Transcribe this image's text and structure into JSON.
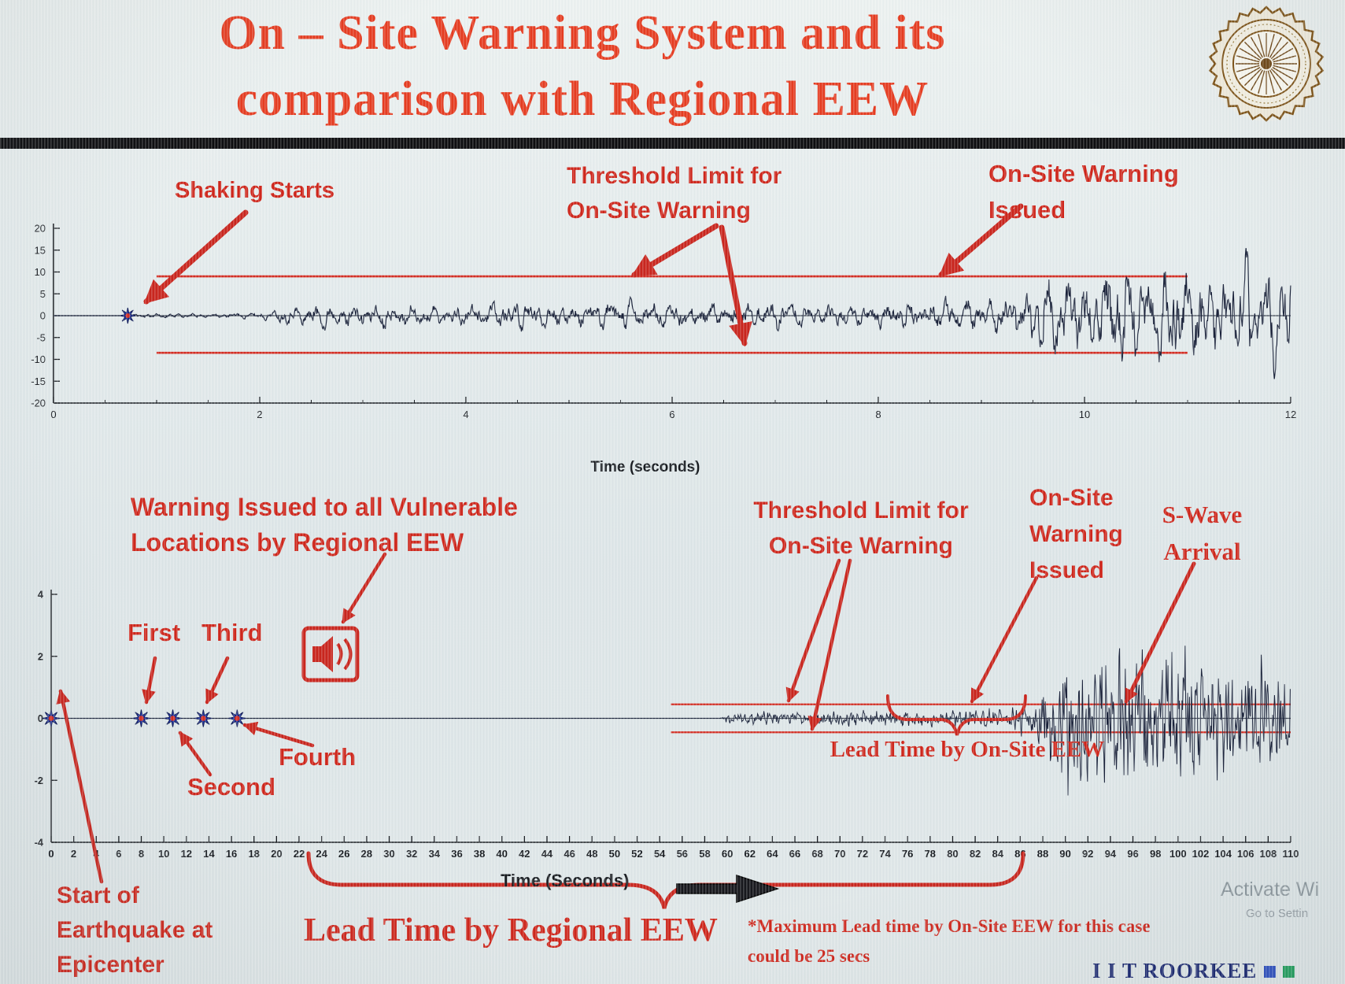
{
  "labels": {
    "title": {
      "line1": "On – Site Warning System and its",
      "line2": "comparison with Regional EEW"
    },
    "top_chart": {
      "shaking_starts": "Shaking Starts",
      "threshold_line1": "Threshold Limit for",
      "threshold_line2": "On-Site Warning",
      "warning_line1": "On-Site Warning",
      "warning_line2": "Issued"
    },
    "bottom_chart": {
      "regional_line1": "Warning Issued to all Vulnerable",
      "regional_line2": "Locations by Regional EEW",
      "threshold_line1": "Threshold Limit for",
      "threshold_line2": "On-Site Warning",
      "onsite_line1": "On-Site",
      "onsite_line2": "Warning",
      "onsite_line3": "Issued",
      "swave_line1": "S-Wave",
      "swave_line2": "Arrival",
      "start_line1": "Start of",
      "start_line2": "Earthquake at",
      "start_line3": "Epicenter",
      "lead_onsite": "Lead Time by On-Site EEW",
      "lead_regional": "Lead Time by Regional EEW",
      "max_note_line1": "*Maximum Lead time by On-Site EEW for this case",
      "max_note_line2": "could be 25 secs"
    },
    "footer": {
      "brand": "I I T ROORKEE",
      "watermark_line1": "Activate Wi",
      "watermark_line2": "Go to Settin"
    }
  },
  "icons": {
    "regional_warning": "speaker-icon",
    "time_direction": "right-arrow-icon",
    "institute_logo": "iit-roorkee-emblem"
  },
  "colors": {
    "title_red": "#e63a1e",
    "annotation_red": "#cf2318",
    "arrow_red": "#c9231b",
    "threshold": "#d42b20",
    "waveform": "#182038",
    "marker_blue": "#2336ad",
    "brand_navy": "#17246e",
    "square_blue": "#2b4dc0",
    "square_green": "#1e9e5a"
  },
  "chart_data": [
    {
      "id": "onsite_record",
      "type": "line",
      "description": "Single-station accelerogram with on-site warning threshold lines",
      "xlabel": "Time (seconds)",
      "xlim": [
        0,
        12
      ],
      "xticks": [
        0,
        2,
        4,
        6,
        8,
        10,
        12
      ],
      "xminor_step": 0.5,
      "ylim": [
        -20,
        20
      ],
      "yticks": [
        20,
        15,
        10,
        5,
        0,
        -5,
        -10,
        -15,
        -20
      ],
      "grid": false,
      "threshold_upper": 9,
      "threshold_lower": -8.5,
      "threshold_span": [
        1,
        11
      ],
      "shaking_start_t": 0.72,
      "onsite_warning_issued_t": 9.4,
      "envelope": [
        [
          0,
          0
        ],
        [
          0.68,
          0
        ],
        [
          0.72,
          0.5
        ],
        [
          1.0,
          0.7
        ],
        [
          1.4,
          0.55
        ],
        [
          1.8,
          0.8
        ],
        [
          2.1,
          1.2
        ],
        [
          2.35,
          3.2
        ],
        [
          2.6,
          4.4
        ],
        [
          2.9,
          3.2
        ],
        [
          3.3,
          3.8
        ],
        [
          3.7,
          2.8
        ],
        [
          4.1,
          3.4
        ],
        [
          4.5,
          4.1
        ],
        [
          5.0,
          3.1
        ],
        [
          5.4,
          4.3
        ],
        [
          5.9,
          4.6
        ],
        [
          6.4,
          3.4
        ],
        [
          6.9,
          4.6
        ],
        [
          7.4,
          3.1
        ],
        [
          7.9,
          3.6
        ],
        [
          8.4,
          4.2
        ],
        [
          8.9,
          4.8
        ],
        [
          9.2,
          5.5
        ],
        [
          9.45,
          8.5
        ],
        [
          9.7,
          12.5
        ],
        [
          10.0,
          10.5
        ],
        [
          10.3,
          16.5
        ],
        [
          10.6,
          12.5
        ],
        [
          10.9,
          16.0
        ],
        [
          11.2,
          12.0
        ],
        [
          11.5,
          17.0
        ],
        [
          11.8,
          13.5
        ],
        [
          12,
          14.5
        ]
      ],
      "components": [
        {
          "freq": 5.2,
          "amp": 0.55,
          "phase": 0.7
        },
        {
          "freq": 8.9,
          "amp": 0.45,
          "phase": 2.1
        },
        {
          "freq": 13.7,
          "amp": 0.3,
          "phase": 4.0
        }
      ],
      "noise": 0.55,
      "seed": 11
    },
    {
      "id": "regional_vs_onsite",
      "type": "line",
      "description": "Epicentral timeline comparing Regional EEW and On-Site EEW lead times",
      "xlabel": "Time (Seconds)",
      "xlim": [
        0,
        110
      ],
      "xticks": [
        0,
        2,
        4,
        6,
        8,
        10,
        12,
        14,
        16,
        18,
        20,
        22,
        24,
        26,
        28,
        30,
        32,
        34,
        36,
        38,
        40,
        42,
        44,
        46,
        48,
        50,
        52,
        54,
        56,
        58,
        60,
        62,
        64,
        66,
        68,
        70,
        72,
        74,
        76,
        78,
        80,
        82,
        84,
        86,
        88,
        90,
        92,
        94,
        96,
        98,
        100,
        102,
        104,
        106,
        108,
        110
      ],
      "ylim": [
        -4,
        4
      ],
      "yticks": [
        4,
        2,
        0,
        -2,
        -4
      ],
      "grid": false,
      "threshold_upper": 0.45,
      "threshold_lower": -0.45,
      "threshold_span": [
        55,
        110
      ],
      "detections": [
        {
          "label": "Start of Earthquake at Epicenter",
          "t": 0
        },
        {
          "label": "First",
          "t": 8
        },
        {
          "label": "Second",
          "t": 10.8
        },
        {
          "label": "Third",
          "t": 13.5
        },
        {
          "label": "Fourth",
          "t": 16.5
        }
      ],
      "regional_warning_issued_t": 24,
      "onsite_warning_issued_t": 74,
      "s_wave_arrival_t": 87,
      "lead_time_regional_span": [
        24,
        86
      ],
      "lead_time_onsite_span": [
        74,
        87
      ],
      "max_lead_time_onsite_secs": 25,
      "envelope": [
        [
          0,
          0
        ],
        [
          59.4,
          0
        ],
        [
          59.8,
          0.18
        ],
        [
          61,
          0.24
        ],
        [
          63,
          0.3
        ],
        [
          65,
          0.26
        ],
        [
          67,
          0.3
        ],
        [
          69,
          0.33
        ],
        [
          71,
          0.28
        ],
        [
          73,
          0.33
        ],
        [
          75,
          0.3
        ],
        [
          77,
          0.34
        ],
        [
          79,
          0.3
        ],
        [
          80,
          0.36
        ],
        [
          81.5,
          0.32
        ],
        [
          83,
          0.42
        ],
        [
          84.5,
          0.38
        ],
        [
          86,
          0.55
        ],
        [
          87,
          0.8
        ],
        [
          88,
          1.5
        ],
        [
          89,
          2.3
        ],
        [
          90,
          3.0
        ],
        [
          90.8,
          2.4
        ],
        [
          91.5,
          3.1
        ],
        [
          92.3,
          2.5
        ],
        [
          93,
          3.2
        ],
        [
          94,
          2.6
        ],
        [
          95,
          3.05
        ],
        [
          96,
          2.55
        ],
        [
          97,
          2.95
        ],
        [
          98,
          2.5
        ],
        [
          99,
          2.85
        ],
        [
          100,
          2.6
        ],
        [
          101,
          2.9
        ],
        [
          102,
          2.4
        ],
        [
          103,
          2.7
        ],
        [
          104,
          2.2
        ],
        [
          105,
          2.5
        ],
        [
          106,
          2.05
        ],
        [
          107,
          2.3
        ],
        [
          108,
          1.9
        ],
        [
          109,
          2.1
        ],
        [
          110,
          1.8
        ]
      ],
      "components": [
        {
          "freq": 1.9,
          "amp": 0.5,
          "phase": 1.2
        },
        {
          "freq": 3.4,
          "amp": 0.45,
          "phase": 0.3
        },
        {
          "freq": 5.8,
          "amp": 0.35,
          "phase": 2.6
        }
      ],
      "noise": 0.6,
      "seed": 23
    }
  ]
}
